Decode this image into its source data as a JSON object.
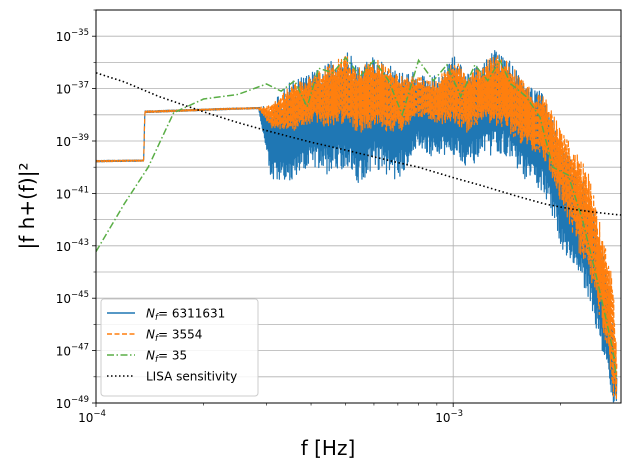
{
  "chart_data": {
    "type": "line",
    "title": "",
    "xlabel": "f [Hz]",
    "ylabel": "|f h+(f)|²",
    "xscale": "log",
    "yscale": "log",
    "xlim": [
      0.0001,
      0.00295
    ],
    "ylim": [
      1e-49,
      1e-34
    ],
    "grid": true,
    "legend_position": "lower-left",
    "x_tick_labels": [
      "10",
      "10"
    ],
    "x_tick_exponents": [
      "−4",
      "−3"
    ],
    "y_tick_labels": [
      "10",
      "10",
      "10",
      "10",
      "10",
      "10",
      "10",
      "10"
    ],
    "y_tick_exponents": [
      "−35",
      "−37",
      "−39",
      "−41",
      "−43",
      "−45",
      "−47",
      "−49"
    ],
    "series": [
      {
        "name": "N_f = 6311631",
        "legend_main": "N",
        "legend_sub": "f",
        "legend_value": "=  6311631",
        "color": "#1f77b4",
        "style": "solid",
        "x": [
          0.0001,
          0.000136,
          0.000137,
          0.00024,
          0.000285,
          0.00031,
          0.00035,
          0.0004,
          0.00045,
          0.0005,
          0.00055,
          0.0006,
          0.0007,
          0.0008,
          0.0009,
          0.001,
          0.0011,
          0.0012,
          0.0013,
          0.0014,
          0.0016,
          0.0018,
          0.002,
          0.0022,
          0.0024,
          0.0025,
          0.0026,
          0.0027,
          0.0028,
          0.00287
        ],
        "y_upper": [
          1.8e-40,
          1.9e-40,
          1.4e-38,
          1.8e-38,
          1.9e-38,
          2.5e-38,
          2e-37,
          4e-37,
          1e-36,
          3e-36,
          8e-37,
          2e-36,
          5e-37,
          4e-37,
          3e-37,
          2e-36,
          4e-37,
          1e-36,
          3e-36,
          2e-36,
          2e-37,
          6e-38,
          1e-39,
          1e-40,
          1e-41,
          1e-42,
          1e-43,
          1e-44,
          1e-46,
          1e-48
        ],
        "y_lower": [
          1.6e-40,
          1.7e-40,
          1.2e-38,
          1.6e-38,
          1.7e-38,
          3e-41,
          2e-41,
          1e-40,
          5e-41,
          1e-40,
          2e-41,
          1e-40,
          3e-41,
          5e-40,
          2e-40,
          3e-40,
          1e-40,
          2e-40,
          3e-40,
          3e-40,
          3e-41,
          1e-41,
          1e-43,
          1e-44,
          1e-45,
          1e-46,
          1e-47,
          1e-48,
          1e-49,
          1e-49
        ]
      },
      {
        "name": "N_f = 3554",
        "legend_main": "N",
        "legend_sub": "f",
        "legend_value": "=  3554",
        "color": "#ff7f0e",
        "style": "dashed",
        "x": [
          0.0001,
          0.000136,
          0.000137,
          0.00024,
          0.000285,
          0.00031,
          0.00035,
          0.0004,
          0.00045,
          0.0005,
          0.00055,
          0.0006,
          0.0007,
          0.0008,
          0.0009,
          0.001,
          0.0011,
          0.0012,
          0.0013,
          0.0014,
          0.0016,
          0.0018,
          0.002,
          0.0022,
          0.0024,
          0.0025,
          0.0026,
          0.0027,
          0.0028,
          0.00287
        ],
        "y_upper": [
          1.8e-40,
          1.9e-40,
          1.4e-38,
          1.8e-38,
          1.9e-38,
          2.4e-38,
          1.5e-37,
          3e-37,
          8e-37,
          2e-36,
          6e-37,
          1.5e-36,
          4e-37,
          3e-37,
          2e-37,
          1.5e-36,
          3e-37,
          8e-37,
          2e-36,
          1.5e-36,
          1.5e-37,
          5e-38,
          3e-39,
          5e-40,
          5e-41,
          5e-42,
          5e-43,
          5e-44,
          5e-45,
          1e-47
        ],
        "y_lower": [
          1.6e-40,
          1.7e-40,
          1.2e-38,
          1.6e-38,
          1.7e-38,
          3e-39,
          2e-39,
          5e-39,
          3e-39,
          4e-39,
          2e-39,
          3e-39,
          2e-39,
          8e-39,
          4e-39,
          5e-39,
          2e-39,
          4e-39,
          4e-39,
          3e-39,
          5e-40,
          2e-40,
          5e-42,
          1e-43,
          1e-44,
          1e-45,
          1e-46,
          1e-47,
          1e-49,
          1e-49
        ]
      },
      {
        "name": "N_f = 35",
        "legend_main": "N",
        "legend_sub": "f",
        "legend_value": "=  35",
        "color": "#5aae46",
        "style": "dashdot",
        "x": [
          0.0001,
          0.00012,
          0.00014,
          0.000165,
          0.0002,
          0.00025,
          0.0003,
          0.00033,
          0.00036,
          0.00039,
          0.00042,
          0.00046,
          0.0005,
          0.00055,
          0.0006,
          0.00066,
          0.00072,
          0.0008,
          0.00088,
          0.00096,
          0.00105,
          0.00115,
          0.00125,
          0.00135,
          0.00145,
          0.0016,
          0.00175,
          0.0019,
          0.0021,
          0.0023,
          0.0025,
          0.0027,
          0.0028,
          0.00286
        ],
        "y": [
          6e-44,
          4e-42,
          1e-40,
          1.2e-38,
          4e-38,
          6e-38,
          1.5e-37,
          8e-38,
          2e-37,
          2e-38,
          6e-37,
          4e-37,
          1.5e-36,
          3e-37,
          1.2e-36,
          2e-37,
          1e-38,
          1.2e-36,
          2e-37,
          8e-37,
          5e-38,
          8e-37,
          2e-37,
          1.2e-36,
          1.5e-37,
          5e-38,
          8e-39,
          1e-40,
          5e-41,
          1e-42,
          1e-44,
          1e-46,
          1e-47,
          1e-48
        ]
      },
      {
        "name": "LISA sensitivity",
        "legend_main": "LISA sensitivity",
        "color": "#000000",
        "style": "dotted",
        "x": [
          0.0001,
          0.00012,
          0.00015,
          0.0002,
          0.00025,
          0.0003,
          0.0004,
          0.0005,
          0.0006,
          0.0007,
          0.0008,
          0.001,
          0.0012,
          0.0015,
          0.0018,
          0.002,
          0.0022,
          0.0025,
          0.0028,
          0.00295
        ],
        "y": [
          4e-37,
          1.8e-37,
          5e-38,
          1.3e-38,
          5e-39,
          2.5e-39,
          9e-40,
          4.5e-40,
          2.5e-40,
          1.5e-40,
          1e-40,
          4e-41,
          2e-41,
          8e-42,
          4e-42,
          3e-42,
          2.4e-42,
          1.9e-42,
          1.6e-42,
          1.5e-42
        ]
      }
    ]
  }
}
